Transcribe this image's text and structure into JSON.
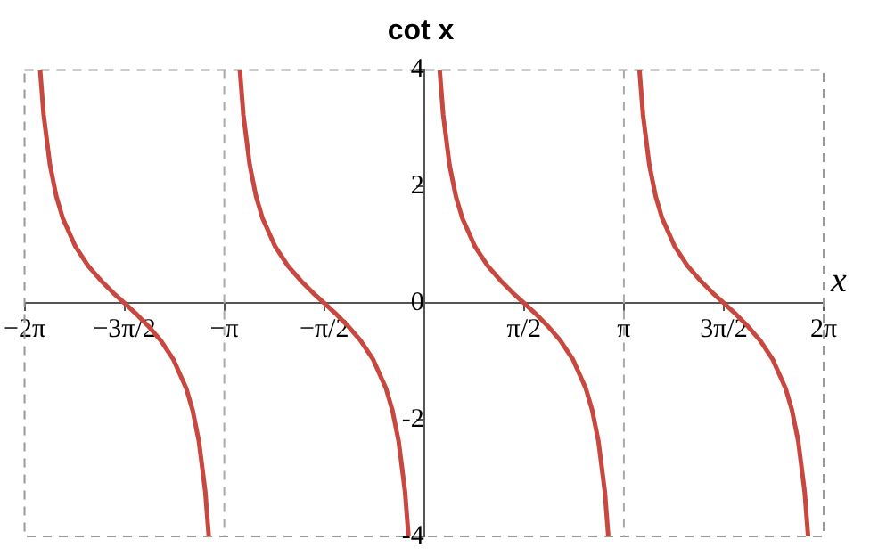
{
  "chart_data": {
    "type": "line",
    "title": "cot x",
    "xlabel": "x",
    "xlim": [
      -6.283,
      6.283
    ],
    "ylim": [
      -4,
      4
    ],
    "xticks": [
      {
        "value": -6.283,
        "label": "−2π"
      },
      {
        "value": -4.712,
        "label": "−3π/2"
      },
      {
        "value": -3.142,
        "label": "−π"
      },
      {
        "value": -1.571,
        "label": "−π/2"
      },
      {
        "value": 1.571,
        "label": "π/2"
      },
      {
        "value": 3.142,
        "label": "π"
      },
      {
        "value": 4.712,
        "label": "3π/2"
      },
      {
        "value": 6.283,
        "label": "2π"
      }
    ],
    "yticks": [
      -4,
      -2,
      0,
      2,
      4
    ],
    "grid": false,
    "legend": false,
    "ref_lines": [
      {
        "axis": "x",
        "value": -3.142,
        "color": "#aaaaaa",
        "line_style": "dashed"
      },
      {
        "axis": "x",
        "value": 3.142,
        "color": "#aaaaaa",
        "line_style": "dashed"
      }
    ],
    "series": [
      {
        "color": "#c8473f",
        "x": [
          -6.038,
          -5.983,
          -5.883,
          -5.783,
          -5.683,
          -5.483,
          -5.283,
          -5.083,
          -4.883,
          -4.712,
          -4.541,
          -4.341,
          -4.141,
          -3.941,
          -3.741,
          -3.641,
          -3.541,
          -3.441,
          -3.386
        ],
        "values": [
          4,
          3.23,
          2.37,
          1.83,
          1.46,
          0.97,
          0.64,
          0.39,
          0.17,
          0,
          -0.17,
          -0.39,
          -0.64,
          -0.97,
          -1.46,
          -1.83,
          -2.37,
          -3.23,
          -4
        ]
      },
      {
        "color": "#c8473f",
        "x": [
          -2.897,
          -2.842,
          -2.742,
          -2.642,
          -2.542,
          -2.342,
          -2.142,
          -1.942,
          -1.742,
          -1.571,
          -1.4,
          -1.2,
          -1.0,
          -0.8,
          -0.6,
          -0.5,
          -0.4,
          -0.3,
          -0.245
        ],
        "values": [
          4,
          3.23,
          2.37,
          1.83,
          1.46,
          0.97,
          0.64,
          0.39,
          0.17,
          0,
          -0.17,
          -0.39,
          -0.64,
          -0.97,
          -1.46,
          -1.83,
          -2.37,
          -3.23,
          -4
        ]
      },
      {
        "color": "#c8473f",
        "x": [
          0.245,
          0.3,
          0.4,
          0.5,
          0.6,
          0.8,
          1.0,
          1.2,
          1.4,
          1.571,
          1.742,
          1.942,
          2.142,
          2.342,
          2.542,
          2.642,
          2.742,
          2.842,
          2.897
        ],
        "values": [
          4,
          3.23,
          2.37,
          1.83,
          1.46,
          0.97,
          0.64,
          0.39,
          0.17,
          0,
          -0.17,
          -0.39,
          -0.64,
          -0.97,
          -1.46,
          -1.83,
          -2.37,
          -3.23,
          -4
        ]
      },
      {
        "color": "#c8473f",
        "x": [
          3.387,
          3.442,
          3.542,
          3.642,
          3.742,
          3.942,
          4.142,
          4.342,
          4.542,
          4.713,
          4.884,
          5.084,
          5.284,
          5.484,
          5.684,
          5.784,
          5.884,
          5.984,
          6.039
        ],
        "values": [
          4,
          3.23,
          2.37,
          1.83,
          1.46,
          0.97,
          0.64,
          0.39,
          0.17,
          0,
          -0.17,
          -0.39,
          -0.64,
          -0.97,
          -1.46,
          -1.83,
          -2.37,
          -3.23,
          -4
        ]
      }
    ]
  }
}
